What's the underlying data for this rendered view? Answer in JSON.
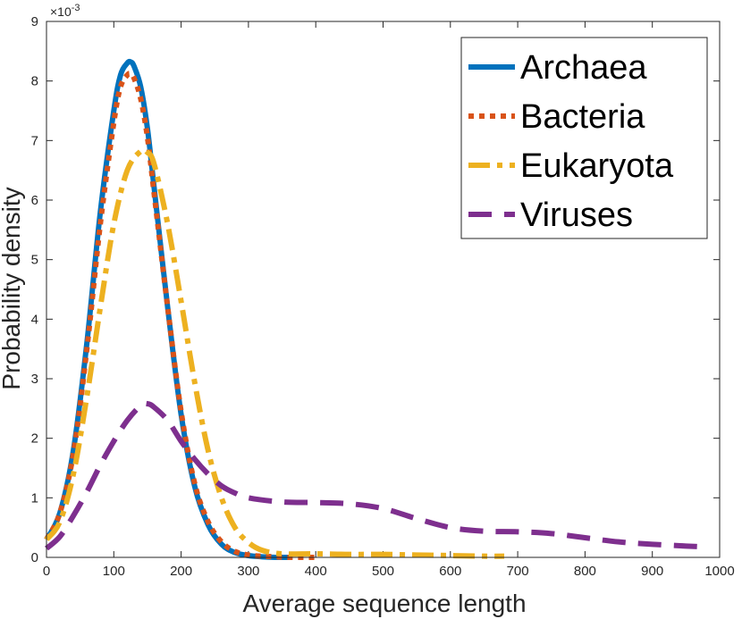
{
  "chart_data": {
    "type": "line",
    "xlabel": "Average sequence length",
    "ylabel": "Probability density",
    "xlim": [
      0,
      1000
    ],
    "ylim": [
      0,
      9
    ],
    "xticks": [
      0,
      100,
      200,
      300,
      400,
      500,
      600,
      700,
      800,
      900,
      1000
    ],
    "yticks": [
      0,
      1,
      2,
      3,
      4,
      5,
      6,
      7,
      8,
      9
    ],
    "yexponent_label": "×10",
    "yexponent_power": "-3",
    "legend_position": "top-right",
    "series": [
      {
        "name": "Archaea",
        "color": "#0072bd",
        "style": "solid",
        "x": [
          0,
          20,
          40,
          60,
          80,
          100,
          110,
          120,
          125,
          130,
          140,
          150,
          160,
          180,
          200,
          220,
          240,
          260,
          280,
          300,
          320,
          340,
          360
        ],
        "y": [
          0.3,
          0.75,
          1.8,
          3.6,
          5.8,
          7.5,
          8.1,
          8.3,
          8.32,
          8.25,
          7.9,
          7.2,
          6.2,
          4.2,
          2.4,
          1.2,
          0.55,
          0.22,
          0.08,
          0.03,
          0.01,
          0.0,
          0.0
        ]
      },
      {
        "name": "Bacteria",
        "color": "#d95319",
        "style": "dotted",
        "x": [
          0,
          20,
          40,
          60,
          80,
          100,
          110,
          120,
          125,
          130,
          140,
          150,
          160,
          180,
          200,
          220,
          240,
          260,
          280,
          300,
          320,
          340,
          360,
          400
        ],
        "y": [
          0.3,
          0.75,
          1.75,
          3.5,
          5.6,
          7.3,
          7.9,
          8.1,
          8.12,
          8.05,
          7.7,
          7.05,
          6.1,
          4.2,
          2.45,
          1.25,
          0.6,
          0.26,
          0.1,
          0.04,
          0.02,
          0.01,
          0.0,
          0.0
        ]
      },
      {
        "name": "Eukaryota",
        "color": "#edb120",
        "style": "dashdot",
        "x": [
          0,
          20,
          40,
          60,
          80,
          100,
          120,
          140,
          150,
          160,
          180,
          200,
          220,
          240,
          260,
          280,
          300,
          320,
          350,
          400,
          450,
          500,
          550,
          600,
          650,
          680
        ],
        "y": [
          0.3,
          0.6,
          1.4,
          2.7,
          4.2,
          5.6,
          6.5,
          6.82,
          6.8,
          6.6,
          5.6,
          4.3,
          2.95,
          1.8,
          1.0,
          0.5,
          0.25,
          0.12,
          0.06,
          0.06,
          0.05,
          0.05,
          0.04,
          0.03,
          0.02,
          0.02
        ]
      },
      {
        "name": "Viruses",
        "color": "#7e2f8e",
        "style": "dashed",
        "x": [
          0,
          20,
          40,
          60,
          80,
          100,
          120,
          140,
          150,
          160,
          180,
          200,
          220,
          240,
          260,
          280,
          300,
          350,
          400,
          450,
          500,
          550,
          600,
          650,
          700,
          750,
          800,
          850,
          900,
          950,
          970
        ],
        "y": [
          0.15,
          0.35,
          0.7,
          1.1,
          1.55,
          1.95,
          2.3,
          2.55,
          2.58,
          2.52,
          2.3,
          1.95,
          1.65,
          1.4,
          1.2,
          1.08,
          1.0,
          0.93,
          0.92,
          0.9,
          0.82,
          0.65,
          0.5,
          0.44,
          0.43,
          0.4,
          0.33,
          0.26,
          0.22,
          0.19,
          0.18
        ]
      }
    ]
  }
}
